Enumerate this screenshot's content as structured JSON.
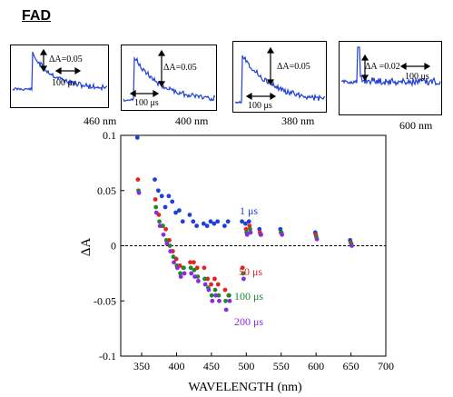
{
  "title": "FAD",
  "insets": [
    {
      "wavelength": "460 nm",
      "amp_label": "ΔA=0.05",
      "time_label": "100 μs"
    },
    {
      "wavelength": "400 nm",
      "amp_label": "ΔA=0.05",
      "time_label": "100 μs"
    },
    {
      "wavelength": "380 nm",
      "amp_label": "ΔA=0.05",
      "time_label": "100 μs"
    },
    {
      "wavelength": "600 nm",
      "amp_label": "ΔA =0.02",
      "time_label": "100 μs"
    }
  ],
  "chart_data": {
    "type": "scatter",
    "title": "",
    "xlabel": "WAVELENGTH (nm)",
    "ylabel": "ΔA",
    "xlim": [
      320,
      700
    ],
    "ylim": [
      -0.1,
      0.1
    ],
    "xticks": [
      350,
      400,
      450,
      500,
      550,
      600,
      650,
      700
    ],
    "yticks": [
      -0.1,
      -0.05,
      0,
      0.05,
      0.1
    ],
    "ytick_labels": [
      "-0.1",
      "-0.05",
      "0",
      "0.05",
      "0.1"
    ],
    "zero_line": true,
    "series": [
      {
        "name": "1 μs",
        "color": "#1f3fd6",
        "x": [
          345,
          370,
          375,
          380,
          385,
          390,
          395,
          400,
          405,
          410,
          420,
          425,
          430,
          440,
          445,
          450,
          455,
          460,
          470,
          475,
          495,
          500,
          505,
          520,
          550,
          600,
          650
        ],
        "y": [
          0.098,
          0.06,
          0.05,
          0.045,
          0.035,
          0.045,
          0.04,
          0.03,
          0.032,
          0.022,
          0.028,
          0.022,
          0.018,
          0.02,
          0.018,
          0.022,
          0.02,
          0.022,
          0.018,
          0.022,
          0.022,
          0.02,
          0.022,
          0.015,
          0.015,
          0.012,
          0.005
        ]
      },
      {
        "name": "50 μs",
        "color": "#e82020",
        "x": [
          345,
          370,
          375,
          380,
          385,
          390,
          395,
          400,
          405,
          410,
          420,
          425,
          430,
          440,
          445,
          450,
          455,
          460,
          470,
          475,
          495,
          500,
          505,
          520,
          550,
          600,
          650
        ],
        "y": [
          0.06,
          0.042,
          0.028,
          0.018,
          0.015,
          0.005,
          -0.005,
          -0.012,
          -0.018,
          -0.02,
          -0.015,
          -0.015,
          -0.02,
          -0.02,
          -0.03,
          -0.035,
          -0.03,
          -0.035,
          -0.04,
          -0.045,
          -0.02,
          0.015,
          0.018,
          0.012,
          0.012,
          0.01,
          0.003
        ]
      },
      {
        "name": "100 μs",
        "color": "#1a8a2a",
        "x": [
          345,
          370,
          375,
          380,
          385,
          390,
          395,
          400,
          405,
          410,
          420,
          425,
          430,
          440,
          445,
          450,
          455,
          460,
          470,
          475,
          495,
          500,
          505,
          520,
          550,
          600,
          650
        ],
        "y": [
          0.05,
          0.035,
          0.022,
          0.018,
          0.005,
          0.0,
          -0.01,
          -0.018,
          -0.025,
          -0.02,
          -0.02,
          -0.022,
          -0.028,
          -0.03,
          -0.038,
          -0.045,
          -0.04,
          -0.045,
          -0.05,
          -0.045,
          -0.025,
          0.012,
          0.015,
          0.01,
          0.012,
          0.008,
          0.002
        ]
      },
      {
        "name": "200 μs",
        "color": "#8a2be2",
        "x": [
          345,
          370,
          375,
          380,
          385,
          390,
          395,
          400,
          405,
          410,
          420,
          425,
          430,
          440,
          445,
          450,
          455,
          460,
          470,
          475,
          495,
          500,
          505,
          520,
          550,
          600,
          650
        ],
        "y": [
          0.048,
          0.03,
          0.018,
          0.01,
          0.002,
          -0.005,
          -0.015,
          -0.02,
          -0.028,
          -0.025,
          -0.025,
          -0.028,
          -0.032,
          -0.035,
          -0.04,
          -0.05,
          -0.045,
          -0.05,
          -0.058,
          -0.05,
          -0.03,
          0.01,
          0.012,
          0.01,
          0.01,
          0.006,
          0.0
        ]
      }
    ]
  }
}
